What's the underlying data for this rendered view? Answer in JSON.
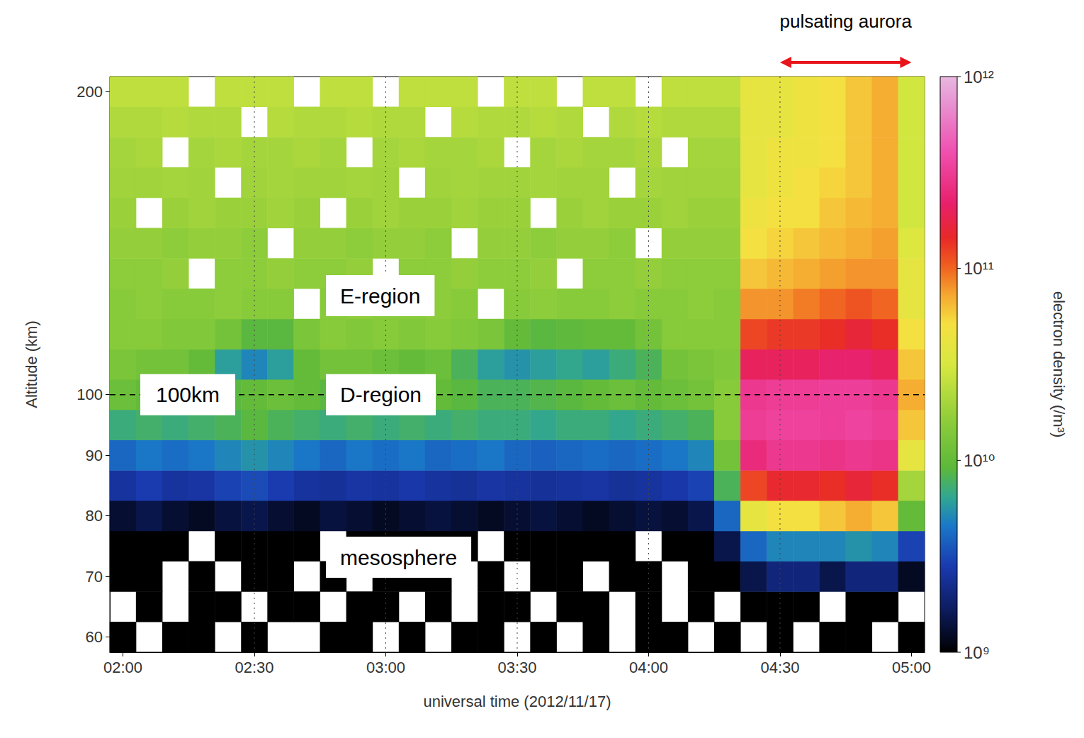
{
  "chart_data": {
    "type": "heatmap",
    "x_label": "universal time (2012/11/17)",
    "y_label": "Altitude (km)",
    "x": [
      "02:00",
      null,
      null,
      null,
      null,
      "02:30",
      null,
      null,
      null,
      null,
      "03:00",
      null,
      null,
      null,
      null,
      "03:30",
      null,
      null,
      null,
      null,
      "04:00",
      null,
      null,
      null,
      null,
      "04:30",
      null,
      null,
      null,
      null,
      "05:00"
    ],
    "y": [
      60,
      null,
      70,
      null,
      80,
      null,
      90,
      null,
      100,
      null,
      null,
      null,
      null,
      null,
      null,
      null,
      null,
      null,
      200
    ],
    "cells": [
      [
        1000000000.0,
        null,
        1000000000.0,
        1000000000.0,
        null,
        1000000000.0,
        null,
        null,
        1000000000.0,
        1000000000.0,
        null,
        1000000000.0,
        null,
        1000000000.0,
        1000000000.0,
        null,
        1000000000.0,
        null,
        1000000000.0,
        null,
        1000000000.0,
        1000000000.0,
        null,
        1000000000.0,
        null,
        1000000000.0,
        null,
        1000000000.0,
        1000000000.0,
        null,
        1000000000.0
      ],
      [
        null,
        1000000000.0,
        null,
        1000000000.0,
        1000000000.0,
        null,
        1000000000.0,
        1000000000.0,
        null,
        1000000000.0,
        1000000000.0,
        null,
        1000000000.0,
        null,
        1000000000.0,
        1000000000.0,
        null,
        1000000000.0,
        1000000000.0,
        null,
        1000000000.0,
        null,
        1000000000.0,
        null,
        1000000000.0,
        1000000000.0,
        1000000000.0,
        null,
        1000000000.0,
        1000000000.0,
        null
      ],
      [
        1000000000.0,
        1000000000.0,
        null,
        1000000000.0,
        null,
        1000000000.0,
        1000000000.0,
        null,
        1000000000.0,
        null,
        1000000000.0,
        1000000000.0,
        1000000000.0,
        null,
        1000000000.0,
        null,
        1000000000.0,
        1000000000.0,
        null,
        1000000000.0,
        1000000000.0,
        null,
        1000000000.0,
        1000000000.0,
        1500000000.0,
        2000000000.0,
        2000000000.0,
        1500000000.0,
        2000000000.0,
        2000000000.0,
        1200000000.0
      ],
      [
        1000000000.0,
        1000000000.0,
        1000000000.0,
        null,
        1000000000.0,
        1000000000.0,
        1000000000.0,
        1000000000.0,
        null,
        1000000000.0,
        1000000000.0,
        1000000000.0,
        1000000000.0,
        1000000000.0,
        null,
        1000000000.0,
        1000000000.0,
        1000000000.0,
        1000000000.0,
        1000000000.0,
        null,
        1000000000.0,
        1000000000.0,
        1500000000.0,
        4000000000.0,
        5000000000.0,
        5000000000.0,
        5000000000.0,
        5500000000.0,
        5000000000.0,
        3000000000.0
      ],
      [
        1300000000.0,
        1500000000.0,
        1300000000.0,
        1200000000.0,
        1400000000.0,
        1500000000.0,
        1300000000.0,
        1200000000.0,
        1400000000.0,
        1300000000.0,
        1200000000.0,
        1300000000.0,
        1400000000.0,
        1300000000.0,
        1200000000.0,
        1300000000.0,
        1400000000.0,
        1300000000.0,
        1200000000.0,
        1300000000.0,
        1400000000.0,
        1300000000.0,
        1500000000.0,
        4000000000.0,
        40000000000.0,
        50000000000.0,
        50000000000.0,
        60000000000.0,
        70000000000.0,
        60000000000.0,
        10000000000.0
      ],
      [
        2500000000.0,
        2800000000.0,
        2500000000.0,
        2600000000.0,
        3000000000.0,
        3200000000.0,
        2800000000.0,
        2500000000.0,
        2400000000.0,
        2600000000.0,
        2500000000.0,
        2700000000.0,
        2500000000.0,
        2400000000.0,
        2600000000.0,
        2500000000.0,
        2400000000.0,
        2500000000.0,
        2600000000.0,
        2400000000.0,
        2500000000.0,
        2700000000.0,
        3000000000.0,
        8000000000.0,
        120000000000.0,
        150000000000.0,
        150000000000.0,
        140000000000.0,
        160000000000.0,
        140000000000.0,
        20000000000.0
      ],
      [
        4000000000.0,
        4500000000.0,
        4200000000.0,
        4500000000.0,
        5000000000.0,
        5500000000.0,
        5000000000.0,
        4500000000.0,
        4000000000.0,
        4500000000.0,
        4200000000.0,
        4500000000.0,
        4000000000.0,
        4200000000.0,
        4500000000.0,
        4000000000.0,
        3800000000.0,
        4000000000.0,
        4200000000.0,
        4000000000.0,
        4200000000.0,
        4500000000.0,
        5000000000.0,
        12000000000.0,
        250000000000.0,
        300000000000.0,
        300000000000.0,
        280000000000.0,
        300000000000.0,
        280000000000.0,
        40000000000.0
      ],
      [
        7000000000.0,
        7500000000.0,
        7000000000.0,
        7500000000.0,
        8000000000.0,
        9000000000.0,
        8000000000.0,
        7500000000.0,
        7000000000.0,
        7500000000.0,
        7000000000.0,
        7500000000.0,
        7000000000.0,
        7500000000.0,
        7000000000.0,
        7000000000.0,
        6500000000.0,
        7000000000.0,
        7000000000.0,
        6500000000.0,
        7000000000.0,
        7500000000.0,
        8000000000.0,
        15000000000.0,
        320000000000.0,
        340000000000.0,
        340000000000.0,
        330000000000.0,
        350000000000.0,
        320000000000.0,
        60000000000.0
      ],
      [
        11000000000.0,
        10000000000.0,
        9000000000.0,
        8000000000.0,
        9000000000.0,
        10000000000.0,
        11000000000.0,
        10000000000.0,
        9000000000.0,
        10000000000.0,
        11000000000.0,
        10000000000.0,
        10000000000.0,
        9000000000.0,
        8000000000.0,
        8000000000.0,
        8500000000.0,
        9000000000.0,
        10000000000.0,
        11000000000.0,
        10000000000.0,
        11000000000.0,
        12000000000.0,
        15000000000.0,
        300000000000.0,
        320000000000.0,
        320000000000.0,
        330000000000.0,
        330000000000.0,
        300000000000.0,
        70000000000.0
      ],
      [
        13000000000.0,
        12000000000.0,
        12000000000.0,
        10000000000.0,
        6000000000.0,
        5000000000.0,
        6000000000.0,
        10000000000.0,
        12000000000.0,
        12000000000.0,
        11000000000.0,
        10000000000.0,
        11000000000.0,
        8000000000.0,
        6000000000.0,
        5500000000.0,
        6000000000.0,
        6500000000.0,
        6000000000.0,
        7000000000.0,
        8000000000.0,
        12000000000.0,
        13000000000.0,
        14000000000.0,
        200000000000.0,
        200000000000.0,
        200000000000.0,
        220000000000.0,
        220000000000.0,
        200000000000.0,
        60000000000.0
      ],
      [
        15000000000.0,
        15000000000.0,
        14000000000.0,
        14000000000.0,
        12000000000.0,
        9000000000.0,
        9000000000.0,
        13000000000.0,
        15000000000.0,
        14000000000.0,
        15000000000.0,
        14000000000.0,
        15000000000.0,
        14000000000.0,
        13000000000.0,
        10000000000.0,
        9000000000.0,
        9500000000.0,
        10000000000.0,
        10000000000.0,
        12000000000.0,
        15000000000.0,
        15000000000.0,
        15000000000.0,
        120000000000.0,
        130000000000.0,
        130000000000.0,
        140000000000.0,
        160000000000.0,
        140000000000.0,
        50000000000.0
      ],
      [
        15000000000.0,
        16000000000.0,
        15000000000.0,
        15000000000.0,
        16000000000.0,
        15000000000.0,
        15000000000.0,
        null,
        15000000000.0,
        16000000000.0,
        15000000000.0,
        15000000000.0,
        16000000000.0,
        15000000000.0,
        null,
        15000000000.0,
        16000000000.0,
        15000000000.0,
        15000000000.0,
        16000000000.0,
        15000000000.0,
        15000000000.0,
        16000000000.0,
        15000000000.0,
        80000000000.0,
        80000000000.0,
        90000000000.0,
        100000000000.0,
        110000000000.0,
        100000000000.0,
        40000000000.0
      ],
      [
        16000000000.0,
        16000000000.0,
        17000000000.0,
        null,
        16000000000.0,
        16000000000.0,
        17000000000.0,
        16000000000.0,
        16000000000.0,
        17000000000.0,
        null,
        16000000000.0,
        16000000000.0,
        17000000000.0,
        16000000000.0,
        16000000000.0,
        17000000000.0,
        null,
        16000000000.0,
        16000000000.0,
        17000000000.0,
        16000000000.0,
        16000000000.0,
        16000000000.0,
        60000000000.0,
        65000000000.0,
        70000000000.0,
        75000000000.0,
        80000000000.0,
        80000000000.0,
        40000000000.0
      ],
      [
        17000000000.0,
        17000000000.0,
        16000000000.0,
        17000000000.0,
        17000000000.0,
        16000000000.0,
        null,
        17000000000.0,
        17000000000.0,
        16000000000.0,
        17000000000.0,
        17000000000.0,
        16000000000.0,
        null,
        17000000000.0,
        17000000000.0,
        16000000000.0,
        17000000000.0,
        17000000000.0,
        16000000000.0,
        null,
        17000000000.0,
        17000000000.0,
        17000000000.0,
        50000000000.0,
        55000000000.0,
        60000000000.0,
        65000000000.0,
        70000000000.0,
        75000000000.0,
        35000000000.0
      ],
      [
        18000000000.0,
        null,
        18000000000.0,
        19000000000.0,
        18000000000.0,
        18000000000.0,
        19000000000.0,
        18000000000.0,
        null,
        18000000000.0,
        19000000000.0,
        18000000000.0,
        18000000000.0,
        19000000000.0,
        18000000000.0,
        18000000000.0,
        null,
        18000000000.0,
        19000000000.0,
        18000000000.0,
        18000000000.0,
        19000000000.0,
        18000000000.0,
        18000000000.0,
        45000000000.0,
        50000000000.0,
        50000000000.0,
        60000000000.0,
        65000000000.0,
        70000000000.0,
        30000000000.0
      ],
      [
        19000000000.0,
        19000000000.0,
        20000000000.0,
        19000000000.0,
        null,
        19000000000.0,
        20000000000.0,
        19000000000.0,
        19000000000.0,
        20000000000.0,
        19000000000.0,
        null,
        19000000000.0,
        20000000000.0,
        19000000000.0,
        19000000000.0,
        20000000000.0,
        19000000000.0,
        19000000000.0,
        null,
        20000000000.0,
        19000000000.0,
        19000000000.0,
        19000000000.0,
        40000000000.0,
        45000000000.0,
        50000000000.0,
        55000000000.0,
        60000000000.0,
        70000000000.0,
        30000000000.0
      ],
      [
        20000000000.0,
        21000000000.0,
        null,
        20000000000.0,
        21000000000.0,
        20000000000.0,
        20000000000.0,
        21000000000.0,
        20000000000.0,
        null,
        20000000000.0,
        21000000000.0,
        20000000000.0,
        20000000000.0,
        21000000000.0,
        null,
        20000000000.0,
        21000000000.0,
        20000000000.0,
        20000000000.0,
        21000000000.0,
        null,
        20000000000.0,
        20000000000.0,
        40000000000.0,
        45000000000.0,
        45000000000.0,
        50000000000.0,
        60000000000.0,
        70000000000.0,
        30000000000.0
      ],
      [
        22000000000.0,
        22000000000.0,
        23000000000.0,
        22000000000.0,
        22000000000.0,
        null,
        23000000000.0,
        22000000000.0,
        22000000000.0,
        23000000000.0,
        22000000000.0,
        22000000000.0,
        null,
        23000000000.0,
        22000000000.0,
        22000000000.0,
        23000000000.0,
        22000000000.0,
        null,
        22000000000.0,
        23000000000.0,
        22000000000.0,
        22000000000.0,
        22000000000.0,
        40000000000.0,
        40000000000.0,
        45000000000.0,
        50000000000.0,
        60000000000.0,
        70000000000.0,
        30000000000.0
      ],
      [
        25000000000.0,
        25000000000.0,
        25000000000.0,
        null,
        25000000000.0,
        25000000000.0,
        25000000000.0,
        null,
        25000000000.0,
        25000000000.0,
        null,
        25000000000.0,
        25000000000.0,
        25000000000.0,
        null,
        25000000000.0,
        25000000000.0,
        null,
        25000000000.0,
        25000000000.0,
        null,
        25000000000.0,
        25000000000.0,
        25000000000.0,
        40000000000.0,
        40000000000.0,
        45000000000.0,
        50000000000.0,
        60000000000.0,
        70000000000.0,
        30000000000.0
      ]
    ],
    "colorbar": {
      "label": "electron density (/m³)",
      "range": [
        1000000000.0,
        1000000000000.0
      ],
      "log": true,
      "ticks": [
        {
          "value": 1000000000.0,
          "label": "10⁹"
        },
        {
          "value": 10000000000.0,
          "label": "10¹⁰"
        },
        {
          "value": 100000000000.0,
          "label": "10¹¹"
        },
        {
          "value": 1000000000000.0,
          "label": "10¹²"
        }
      ]
    },
    "grid": true,
    "reference_line": {
      "y": 100,
      "label": "100km"
    },
    "span": {
      "label": "pulsating aurora",
      "start": "04:30",
      "end": "05:00"
    },
    "annotations": [
      "E-region",
      "D-region",
      "mesosphere"
    ]
  }
}
